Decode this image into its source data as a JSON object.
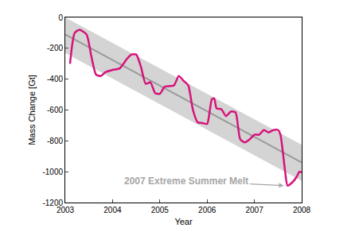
{
  "chart_data": {
    "type": "line",
    "xlabel": "Year",
    "ylabel": "Mass Change [Gt]",
    "xlim": [
      2003,
      2008
    ],
    "ylim": [
      -1200,
      0
    ],
    "xticks": [
      2003,
      2004,
      2005,
      2006,
      2007,
      2008
    ],
    "yticks": [
      -1200,
      -1000,
      -800,
      -600,
      -400,
      -200,
      0
    ],
    "grid": false,
    "series": [
      {
        "color": "#d6127a",
        "x": [
          2003.1,
          2003.2,
          2003.3,
          2003.45,
          2003.55,
          2003.65,
          2003.75,
          2003.85,
          2004.0,
          2004.15,
          2004.3,
          2004.4,
          2004.5,
          2004.6,
          2004.7,
          2004.8,
          2004.9,
          2005.0,
          2005.1,
          2005.2,
          2005.3,
          2005.4,
          2005.5,
          2005.6,
          2005.7,
          2005.8,
          2005.9,
          2006.0,
          2006.1,
          2006.15,
          2006.2,
          2006.3,
          2006.4,
          2006.5,
          2006.6,
          2006.7,
          2006.8,
          2006.9,
          2007.0,
          2007.1,
          2007.2,
          2007.3,
          2007.4,
          2007.5,
          2007.55,
          2007.65,
          2007.7,
          2007.8,
          2007.9,
          2007.95,
          2008.0
        ],
        "values": [
          -300,
          -100,
          -80,
          -110,
          -250,
          -370,
          -380,
          -355,
          -340,
          -330,
          -270,
          -240,
          -240,
          -320,
          -430,
          -420,
          -490,
          -495,
          -450,
          -445,
          -440,
          -380,
          -410,
          -440,
          -600,
          -680,
          -685,
          -690,
          -530,
          -525,
          -590,
          -595,
          -640,
          -610,
          -615,
          -790,
          -810,
          -790,
          -760,
          -760,
          -730,
          -745,
          -730,
          -730,
          -760,
          -1000,
          -1090,
          -1070,
          -1030,
          -1000,
          -1005
        ]
      }
    ],
    "trend": {
      "color": "#9a9a9a",
      "x": [
        2003,
        2008
      ],
      "values": [
        -110,
        -940
      ]
    },
    "band": {
      "color": "#d4d4d4",
      "x": [
        2003,
        2008
      ],
      "lower": [
        -230,
        -1060
      ],
      "upper": [
        0,
        -825
      ]
    },
    "annotations": [
      {
        "text": "2007 Extreme Summer Melt",
        "x": 2007.62,
        "y": -1090,
        "color": "#a6a6a6"
      }
    ]
  }
}
